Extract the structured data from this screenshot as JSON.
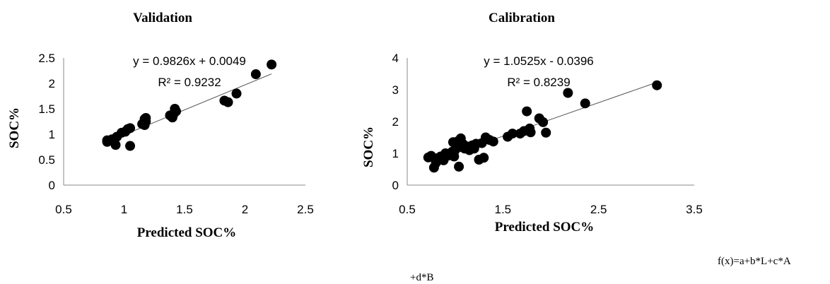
{
  "chart_data": [
    {
      "type": "scatter",
      "title": "Validation",
      "xlabel": "Predicted SOC%",
      "ylabel": "SOC%",
      "xlim": [
        0.5,
        2.5
      ],
      "ylim": [
        0,
        2.5
      ],
      "xticks": [
        "0.5",
        "1",
        "1.5",
        "2",
        "2.5"
      ],
      "yticks": [
        "0",
        "0.5",
        "1",
        "1.5",
        "2",
        "2.5"
      ],
      "equation": "y = 0.9826x + 0.0049",
      "r2": "R² = 0.9232",
      "trendline": {
        "slope": 0.9826,
        "intercept": 0.0049,
        "x_range": [
          0.85,
          2.22
        ]
      },
      "points": [
        [
          0.86,
          0.85
        ],
        [
          0.86,
          0.88
        ],
        [
          0.9,
          0.9
        ],
        [
          0.93,
          0.79
        ],
        [
          0.94,
          0.95
        ],
        [
          0.98,
          1.03
        ],
        [
          1.01,
          1.05
        ],
        [
          1.03,
          1.1
        ],
        [
          1.05,
          0.77
        ],
        [
          1.05,
          1.12
        ],
        [
          1.15,
          1.2
        ],
        [
          1.17,
          1.18
        ],
        [
          1.17,
          1.3
        ],
        [
          1.18,
          1.25
        ],
        [
          1.18,
          1.32
        ],
        [
          1.38,
          1.37
        ],
        [
          1.4,
          1.33
        ],
        [
          1.41,
          1.4
        ],
        [
          1.42,
          1.5
        ],
        [
          1.43,
          1.45
        ],
        [
          1.83,
          1.66
        ],
        [
          1.86,
          1.63
        ],
        [
          1.93,
          1.8
        ],
        [
          2.09,
          2.18
        ],
        [
          2.22,
          2.37
        ]
      ]
    },
    {
      "type": "scatter",
      "title": "Calibration",
      "xlabel": "Predicted SOC%",
      "ylabel": "SOC%",
      "xlim": [
        0.5,
        3.5
      ],
      "ylim": [
        0,
        4
      ],
      "xticks": [
        "0.5",
        "1.5",
        "2.5",
        "3.5"
      ],
      "yticks": [
        "0",
        "1",
        "2",
        "3",
        "4"
      ],
      "equation": "y = 1.0525x - 0.0396",
      "r2": "R² = 0.8239",
      "trendline": {
        "slope": 1.0525,
        "intercept": -0.0396,
        "x_range": [
          0.73,
          3.11
        ]
      },
      "points": [
        [
          0.72,
          0.87
        ],
        [
          0.75,
          0.92
        ],
        [
          0.78,
          0.55
        ],
        [
          0.8,
          0.7
        ],
        [
          0.82,
          0.85
        ],
        [
          0.85,
          0.9
        ],
        [
          0.88,
          0.78
        ],
        [
          0.9,
          1.0
        ],
        [
          0.93,
          0.93
        ],
        [
          0.97,
          1.05
        ],
        [
          0.98,
          1.35
        ],
        [
          0.99,
          0.9
        ],
        [
          1.0,
          1.1
        ],
        [
          1.01,
          1.25
        ],
        [
          1.03,
          1.38
        ],
        [
          1.04,
          0.58
        ],
        [
          1.05,
          1.2
        ],
        [
          1.06,
          1.47
        ],
        [
          1.08,
          1.3
        ],
        [
          1.1,
          1.15
        ],
        [
          1.12,
          1.22
        ],
        [
          1.15,
          1.1
        ],
        [
          1.18,
          1.25
        ],
        [
          1.2,
          1.15
        ],
        [
          1.22,
          1.3
        ],
        [
          1.25,
          0.8
        ],
        [
          1.28,
          1.32
        ],
        [
          1.3,
          0.86
        ],
        [
          1.32,
          1.5
        ],
        [
          1.36,
          1.42
        ],
        [
          1.4,
          1.37
        ],
        [
          1.55,
          1.52
        ],
        [
          1.6,
          1.62
        ],
        [
          1.68,
          1.62
        ],
        [
          1.72,
          1.7
        ],
        [
          1.75,
          2.32
        ],
        [
          1.78,
          1.78
        ],
        [
          1.79,
          1.66
        ],
        [
          1.88,
          2.1
        ],
        [
          1.92,
          1.98
        ],
        [
          1.95,
          1.65
        ],
        [
          2.18,
          2.9
        ],
        [
          2.36,
          2.57
        ],
        [
          3.11,
          3.14
        ]
      ]
    }
  ],
  "footnote": {
    "line1": "f(x)=a+b*L+c*A",
    "line2": "+d*B"
  }
}
